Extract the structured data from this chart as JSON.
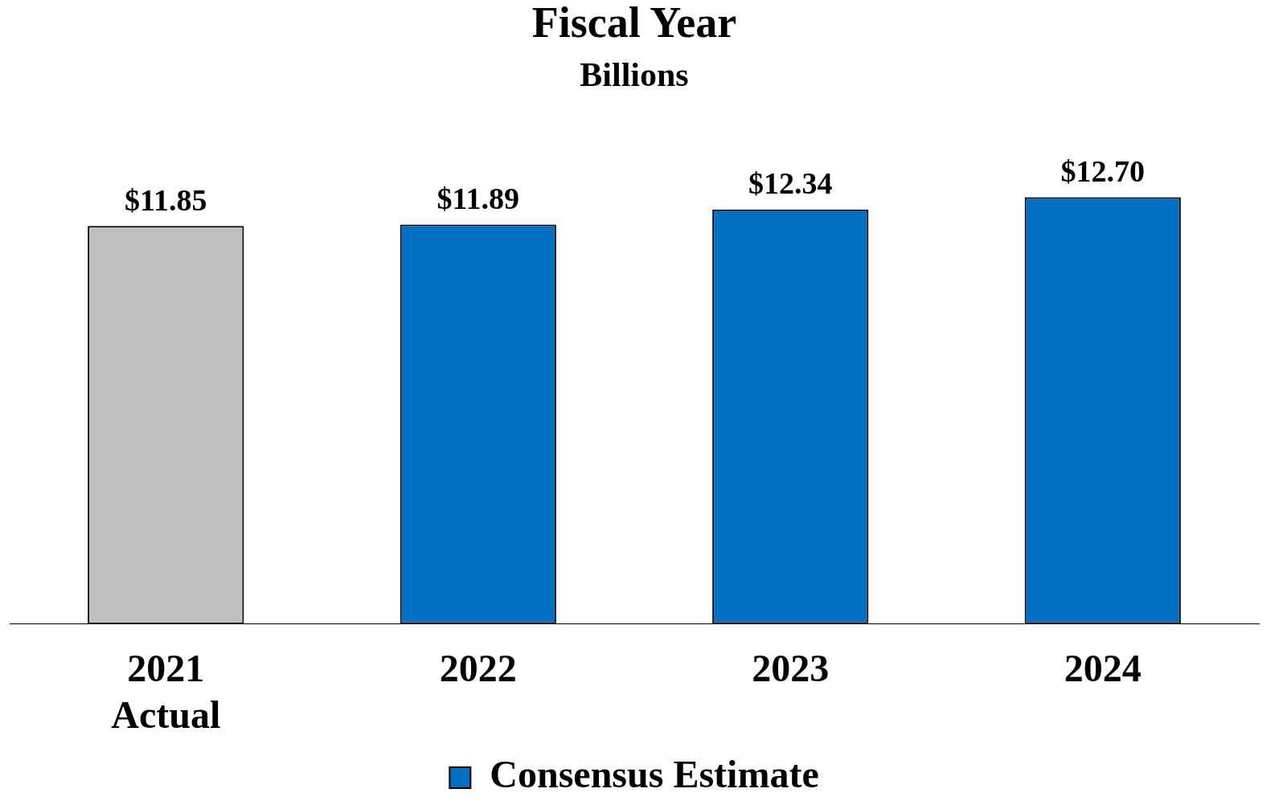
{
  "chart_data": {
    "type": "bar",
    "title": "Fiscal Year",
    "subtitle": "Billions",
    "categories": [
      "2021 Actual",
      "2022",
      "2023",
      "2024"
    ],
    "series": [
      {
        "color": "#c0c0c0",
        "values": [
          11.85,
          null,
          null,
          null
        ],
        "value_labels": [
          "$11.85",
          null,
          null,
          null
        ]
      },
      {
        "name": "Consensus Estimate",
        "color": "#0070c0",
        "values": [
          null,
          11.89,
          12.34,
          12.7
        ],
        "value_labels": [
          null,
          "$11.89",
          "$12.34",
          "$12.70"
        ]
      }
    ],
    "legend": "bottom",
    "grid": false
  }
}
